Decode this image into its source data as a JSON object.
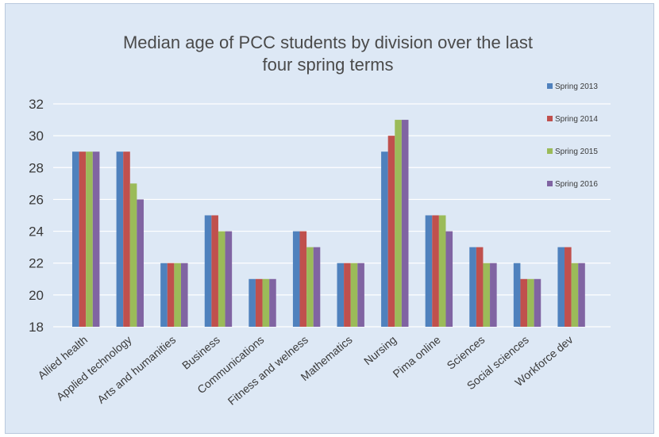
{
  "chart_data": {
    "type": "bar",
    "title_lines": [
      "Median age of PCC students by division over the last",
      "four spring terms"
    ],
    "xlabel": "",
    "ylabel": "",
    "ylim": [
      18,
      32
    ],
    "yticks": [
      18,
      20,
      22,
      24,
      26,
      28,
      30,
      32
    ],
    "grid": true,
    "legend_position": "right",
    "categories": [
      "Allied health",
      "Applied technology",
      "Arts and humanities",
      "Business",
      "Communications",
      "Fitness and welness",
      "Mathematics",
      "Nursing",
      "Pima online",
      "Sciences",
      "Social sciences",
      "Workforce dev"
    ],
    "series": [
      {
        "name": "Spring 2013",
        "color": "#4f81bd",
        "values": [
          29,
          29,
          22,
          25,
          21,
          24,
          22,
          29,
          25,
          23,
          22,
          23
        ]
      },
      {
        "name": "Spring 2014",
        "color": "#c0504d",
        "values": [
          29,
          29,
          22,
          25,
          21,
          24,
          22,
          30,
          25,
          23,
          21,
          23
        ]
      },
      {
        "name": "Spring 2015",
        "color": "#9bbb59",
        "values": [
          29,
          27,
          22,
          24,
          21,
          23,
          22,
          31,
          25,
          22,
          21,
          22
        ]
      },
      {
        "name": "Spring 2016",
        "color": "#8064a2",
        "values": [
          29,
          26,
          22,
          24,
          21,
          23,
          22,
          31,
          24,
          22,
          21,
          22
        ]
      }
    ]
  }
}
